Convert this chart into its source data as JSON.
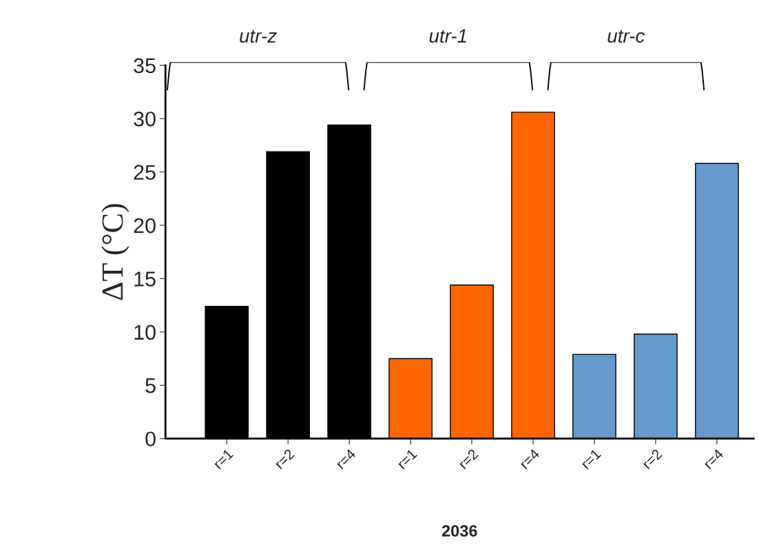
{
  "chart_data": {
    "type": "bar",
    "xlabel": "2036",
    "ylabel": "ΔT (°C)",
    "categories": [
      "r=1",
      "r=2",
      "r=4",
      "r=1",
      "r=2",
      "r=4",
      "r=1",
      "r=2",
      "r=4"
    ],
    "values": [
      12.4,
      26.9,
      29.4,
      7.5,
      14.4,
      30.6,
      7.9,
      9.8,
      25.8
    ],
    "colors": [
      "#000000",
      "#000000",
      "#000000",
      "#ff6600",
      "#ff6600",
      "#ff6600",
      "#6699cc",
      "#6699cc",
      "#6699cc"
    ],
    "ylim": [
      0,
      35
    ],
    "yticks": [
      0,
      5,
      10,
      15,
      20,
      25,
      30,
      35
    ],
    "grid": false,
    "legend": false,
    "annotations": [
      "utr-z",
      "utr-1",
      "utr-c"
    ]
  }
}
